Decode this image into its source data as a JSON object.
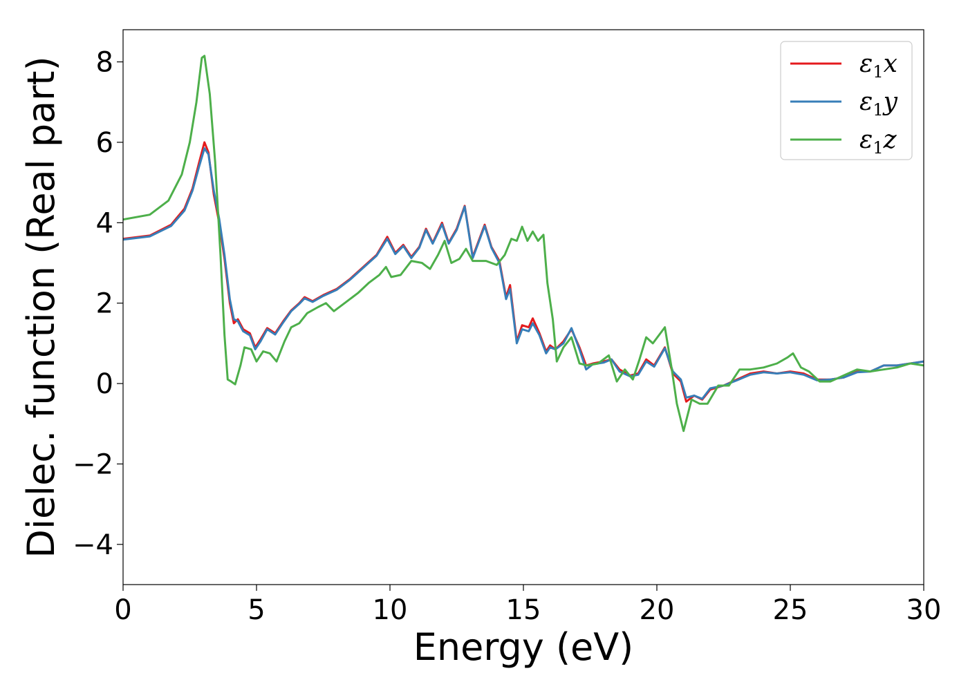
{
  "chart_data": {
    "type": "line",
    "xlabel": "Energy (eV)",
    "ylabel": "Dielec. function (Real part)",
    "xlim": [
      0,
      30
    ],
    "ylim": [
      -5,
      8.8
    ],
    "xticks": [
      0,
      5,
      10,
      15,
      20,
      25,
      30
    ],
    "yticks": [
      -4,
      -2,
      0,
      2,
      4,
      6,
      8
    ],
    "ytick_labels": [
      "−4",
      "−2",
      "0",
      "2",
      "4",
      "6",
      "8"
    ],
    "grid": false,
    "legend_position": "top-right",
    "series": [
      {
        "name": "ε1x",
        "legend_main": "ε",
        "legend_sub": "1",
        "legend_tail": "x",
        "color": "#e41a1c",
        "points": [
          [
            0,
            3.6
          ],
          [
            1.0,
            3.68
          ],
          [
            1.8,
            3.95
          ],
          [
            2.3,
            4.35
          ],
          [
            2.6,
            4.85
          ],
          [
            2.85,
            5.5
          ],
          [
            3.05,
            6.0
          ],
          [
            3.2,
            5.75
          ],
          [
            3.4,
            4.7
          ],
          [
            3.6,
            4.0
          ],
          [
            3.8,
            3.1
          ],
          [
            4.0,
            2.0
          ],
          [
            4.15,
            1.5
          ],
          [
            4.3,
            1.6
          ],
          [
            4.5,
            1.35
          ],
          [
            4.75,
            1.25
          ],
          [
            4.95,
            0.9
          ],
          [
            5.15,
            1.1
          ],
          [
            5.4,
            1.38
          ],
          [
            5.7,
            1.25
          ],
          [
            6.0,
            1.55
          ],
          [
            6.3,
            1.82
          ],
          [
            6.6,
            2.0
          ],
          [
            6.8,
            2.15
          ],
          [
            7.1,
            2.05
          ],
          [
            7.5,
            2.2
          ],
          [
            8.0,
            2.35
          ],
          [
            8.5,
            2.6
          ],
          [
            9.0,
            2.9
          ],
          [
            9.5,
            3.2
          ],
          [
            9.9,
            3.65
          ],
          [
            10.2,
            3.25
          ],
          [
            10.5,
            3.45
          ],
          [
            10.8,
            3.15
          ],
          [
            11.1,
            3.4
          ],
          [
            11.35,
            3.85
          ],
          [
            11.6,
            3.5
          ],
          [
            11.95,
            4.0
          ],
          [
            12.2,
            3.5
          ],
          [
            12.5,
            3.85
          ],
          [
            12.8,
            4.42
          ],
          [
            13.1,
            3.15
          ],
          [
            13.55,
            3.95
          ],
          [
            13.8,
            3.4
          ],
          [
            14.1,
            3.05
          ],
          [
            14.35,
            2.15
          ],
          [
            14.5,
            2.45
          ],
          [
            14.75,
            1.05
          ],
          [
            14.95,
            1.45
          ],
          [
            15.2,
            1.4
          ],
          [
            15.35,
            1.62
          ],
          [
            15.6,
            1.25
          ],
          [
            15.85,
            0.8
          ],
          [
            16.0,
            0.95
          ],
          [
            16.2,
            0.85
          ],
          [
            16.5,
            1.05
          ],
          [
            16.8,
            1.35
          ],
          [
            17.1,
            0.9
          ],
          [
            17.35,
            0.45
          ],
          [
            17.6,
            0.5
          ],
          [
            18.0,
            0.55
          ],
          [
            18.3,
            0.6
          ],
          [
            18.6,
            0.35
          ],
          [
            19.0,
            0.2
          ],
          [
            19.3,
            0.25
          ],
          [
            19.6,
            0.6
          ],
          [
            19.9,
            0.45
          ],
          [
            20.3,
            0.9
          ],
          [
            20.6,
            0.25
          ],
          [
            20.9,
            0.05
          ],
          [
            21.1,
            -0.45
          ],
          [
            21.4,
            -0.3
          ],
          [
            21.7,
            -0.4
          ],
          [
            22.0,
            -0.15
          ],
          [
            22.5,
            -0.05
          ],
          [
            23.0,
            0.1
          ],
          [
            23.5,
            0.25
          ],
          [
            24.0,
            0.3
          ],
          [
            24.5,
            0.25
          ],
          [
            25.0,
            0.3
          ],
          [
            25.5,
            0.25
          ],
          [
            26.0,
            0.1
          ],
          [
            26.5,
            0.1
          ],
          [
            27.0,
            0.15
          ],
          [
            27.5,
            0.3
          ],
          [
            28.0,
            0.3
          ],
          [
            28.5,
            0.45
          ],
          [
            29.0,
            0.45
          ],
          [
            29.5,
            0.5
          ],
          [
            30.0,
            0.55
          ]
        ]
      },
      {
        "name": "ε1y",
        "legend_main": "ε",
        "legend_sub": "1",
        "legend_tail": "y",
        "color": "#377eb8",
        "points": [
          [
            0,
            3.58
          ],
          [
            1.0,
            3.66
          ],
          [
            1.8,
            3.92
          ],
          [
            2.3,
            4.3
          ],
          [
            2.6,
            4.8
          ],
          [
            2.85,
            5.4
          ],
          [
            3.05,
            5.85
          ],
          [
            3.2,
            5.7
          ],
          [
            3.4,
            4.8
          ],
          [
            3.6,
            4.1
          ],
          [
            3.8,
            3.2
          ],
          [
            4.0,
            2.1
          ],
          [
            4.15,
            1.6
          ],
          [
            4.3,
            1.55
          ],
          [
            4.5,
            1.3
          ],
          [
            4.75,
            1.2
          ],
          [
            4.95,
            0.85
          ],
          [
            5.15,
            1.05
          ],
          [
            5.4,
            1.35
          ],
          [
            5.7,
            1.22
          ],
          [
            6.0,
            1.52
          ],
          [
            6.3,
            1.8
          ],
          [
            6.6,
            1.98
          ],
          [
            6.8,
            2.12
          ],
          [
            7.1,
            2.03
          ],
          [
            7.5,
            2.18
          ],
          [
            8.0,
            2.33
          ],
          [
            8.5,
            2.58
          ],
          [
            9.0,
            2.88
          ],
          [
            9.5,
            3.18
          ],
          [
            9.9,
            3.6
          ],
          [
            10.2,
            3.22
          ],
          [
            10.5,
            3.42
          ],
          [
            10.8,
            3.12
          ],
          [
            11.1,
            3.38
          ],
          [
            11.35,
            3.82
          ],
          [
            11.6,
            3.48
          ],
          [
            11.95,
            3.96
          ],
          [
            12.2,
            3.48
          ],
          [
            12.5,
            3.82
          ],
          [
            12.8,
            4.4
          ],
          [
            13.1,
            3.12
          ],
          [
            13.55,
            3.92
          ],
          [
            13.8,
            3.38
          ],
          [
            14.1,
            3.0
          ],
          [
            14.35,
            2.1
          ],
          [
            14.5,
            2.35
          ],
          [
            14.75,
            1.0
          ],
          [
            14.95,
            1.35
          ],
          [
            15.2,
            1.3
          ],
          [
            15.35,
            1.5
          ],
          [
            15.6,
            1.2
          ],
          [
            15.85,
            0.75
          ],
          [
            16.0,
            0.9
          ],
          [
            16.2,
            0.85
          ],
          [
            16.5,
            1.0
          ],
          [
            16.8,
            1.38
          ],
          [
            17.1,
            0.85
          ],
          [
            17.35,
            0.35
          ],
          [
            17.6,
            0.48
          ],
          [
            18.0,
            0.52
          ],
          [
            18.3,
            0.6
          ],
          [
            18.6,
            0.3
          ],
          [
            19.0,
            0.18
          ],
          [
            19.3,
            0.22
          ],
          [
            19.6,
            0.55
          ],
          [
            19.9,
            0.42
          ],
          [
            20.3,
            0.88
          ],
          [
            20.6,
            0.3
          ],
          [
            20.9,
            0.1
          ],
          [
            21.1,
            -0.35
          ],
          [
            21.4,
            -0.3
          ],
          [
            21.7,
            -0.38
          ],
          [
            22.0,
            -0.12
          ],
          [
            22.5,
            -0.05
          ],
          [
            23.0,
            0.08
          ],
          [
            23.5,
            0.22
          ],
          [
            24.0,
            0.28
          ],
          [
            24.5,
            0.25
          ],
          [
            25.0,
            0.28
          ],
          [
            25.5,
            0.22
          ],
          [
            26.0,
            0.08
          ],
          [
            26.5,
            0.1
          ],
          [
            27.0,
            0.15
          ],
          [
            27.5,
            0.28
          ],
          [
            28.0,
            0.3
          ],
          [
            28.5,
            0.45
          ],
          [
            29.0,
            0.45
          ],
          [
            29.5,
            0.5
          ],
          [
            30.0,
            0.55
          ]
        ]
      },
      {
        "name": "ε1z",
        "legend_main": "ε",
        "legend_sub": "1",
        "legend_tail": "z",
        "color": "#4daf4a",
        "points": [
          [
            0,
            4.08
          ],
          [
            1.0,
            4.2
          ],
          [
            1.7,
            4.55
          ],
          [
            2.2,
            5.2
          ],
          [
            2.5,
            6.0
          ],
          [
            2.75,
            7.0
          ],
          [
            2.95,
            8.1
          ],
          [
            3.05,
            8.15
          ],
          [
            3.25,
            7.2
          ],
          [
            3.45,
            5.5
          ],
          [
            3.65,
            3.2
          ],
          [
            3.8,
            1.2
          ],
          [
            3.92,
            0.1
          ],
          [
            4.05,
            0.05
          ],
          [
            4.2,
            -0.02
          ],
          [
            4.4,
            0.45
          ],
          [
            4.55,
            0.9
          ],
          [
            4.8,
            0.85
          ],
          [
            5.0,
            0.55
          ],
          [
            5.25,
            0.8
          ],
          [
            5.5,
            0.75
          ],
          [
            5.75,
            0.55
          ],
          [
            6.05,
            1.05
          ],
          [
            6.3,
            1.4
          ],
          [
            6.6,
            1.5
          ],
          [
            6.9,
            1.75
          ],
          [
            7.3,
            1.9
          ],
          [
            7.6,
            2.0
          ],
          [
            7.9,
            1.8
          ],
          [
            8.3,
            2.0
          ],
          [
            8.8,
            2.25
          ],
          [
            9.2,
            2.5
          ],
          [
            9.6,
            2.7
          ],
          [
            9.85,
            2.9
          ],
          [
            10.05,
            2.65
          ],
          [
            10.4,
            2.7
          ],
          [
            10.8,
            3.05
          ],
          [
            11.2,
            3.0
          ],
          [
            11.5,
            2.85
          ],
          [
            11.8,
            3.2
          ],
          [
            12.05,
            3.55
          ],
          [
            12.3,
            3.0
          ],
          [
            12.6,
            3.1
          ],
          [
            12.85,
            3.35
          ],
          [
            13.1,
            3.05
          ],
          [
            13.6,
            3.05
          ],
          [
            14.0,
            2.95
          ],
          [
            14.3,
            3.2
          ],
          [
            14.55,
            3.6
          ],
          [
            14.75,
            3.55
          ],
          [
            14.95,
            3.9
          ],
          [
            15.15,
            3.55
          ],
          [
            15.35,
            3.78
          ],
          [
            15.55,
            3.55
          ],
          [
            15.75,
            3.7
          ],
          [
            15.9,
            2.5
          ],
          [
            16.1,
            1.6
          ],
          [
            16.25,
            0.55
          ],
          [
            16.5,
            0.9
          ],
          [
            16.8,
            1.15
          ],
          [
            17.1,
            0.5
          ],
          [
            17.4,
            0.45
          ],
          [
            17.8,
            0.5
          ],
          [
            18.2,
            0.7
          ],
          [
            18.5,
            0.05
          ],
          [
            18.8,
            0.35
          ],
          [
            19.1,
            0.1
          ],
          [
            19.35,
            0.6
          ],
          [
            19.6,
            1.15
          ],
          [
            19.85,
            1.0
          ],
          [
            20.3,
            1.4
          ],
          [
            20.55,
            0.4
          ],
          [
            20.75,
            -0.5
          ],
          [
            21.0,
            -1.18
          ],
          [
            21.3,
            -0.4
          ],
          [
            21.6,
            -0.5
          ],
          [
            21.9,
            -0.5
          ],
          [
            22.3,
            -0.05
          ],
          [
            22.7,
            -0.05
          ],
          [
            23.1,
            0.35
          ],
          [
            23.5,
            0.35
          ],
          [
            24.0,
            0.4
          ],
          [
            24.5,
            0.5
          ],
          [
            24.9,
            0.65
          ],
          [
            25.1,
            0.75
          ],
          [
            25.4,
            0.4
          ],
          [
            25.7,
            0.3
          ],
          [
            26.1,
            0.05
          ],
          [
            26.5,
            0.05
          ],
          [
            27.0,
            0.2
          ],
          [
            27.5,
            0.35
          ],
          [
            28.0,
            0.3
          ],
          [
            28.5,
            0.35
          ],
          [
            29.0,
            0.4
          ],
          [
            29.5,
            0.5
          ],
          [
            30.0,
            0.45
          ]
        ]
      }
    ]
  }
}
